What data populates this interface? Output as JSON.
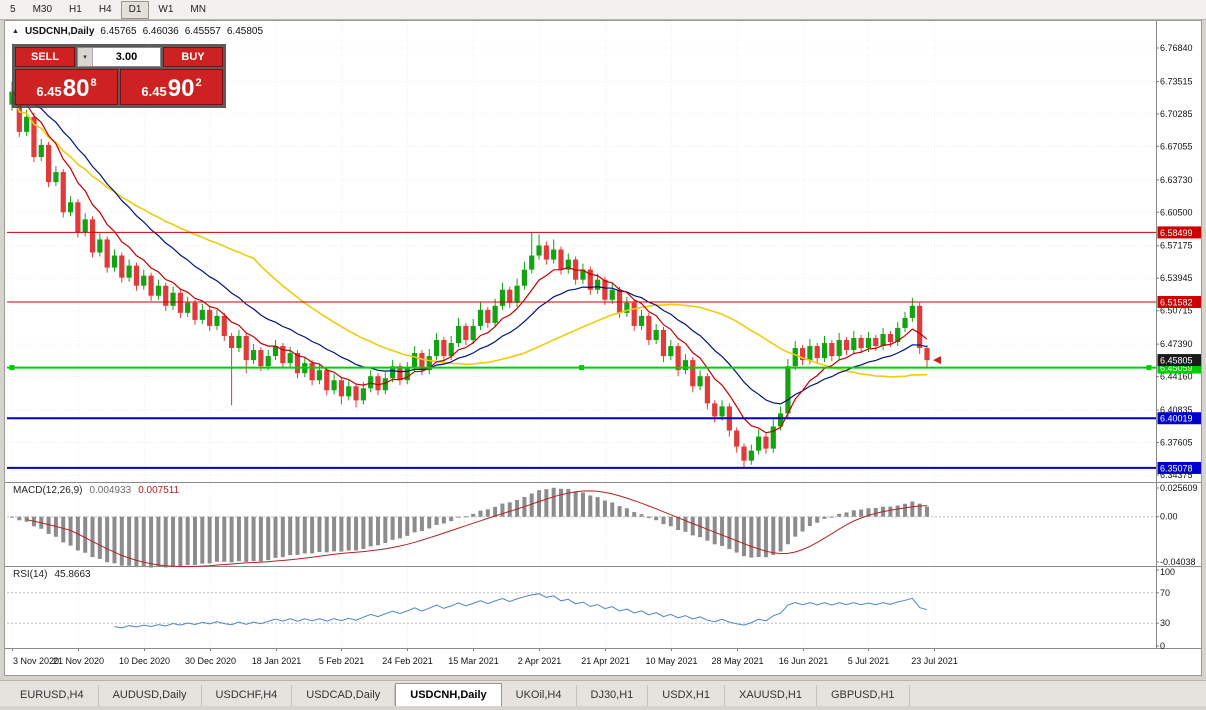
{
  "toolbar": {
    "timeframes": [
      "5",
      "M30",
      "H1",
      "H4",
      "D1",
      "W1",
      "MN"
    ],
    "active": "D1"
  },
  "chart": {
    "title": {
      "symbol": "USDCNH,Daily",
      "open": "6.45765",
      "high": "6.46036",
      "low": "6.45557",
      "close": "6.45805"
    },
    "trade_panel": {
      "sell_label": "SELL",
      "buy_label": "BUY",
      "lots": "3.00",
      "sell_price": {
        "big": "6.45",
        "pips": "80",
        "sup": "8"
      },
      "buy_price": {
        "big": "6.45",
        "pips": "90",
        "sup": "2"
      },
      "sell_color": "#CE2222",
      "buy_color": "#CE2222"
    },
    "axis_labels": [
      "6.76840",
      "6.73515",
      "6.70285",
      "6.67055",
      "6.63730",
      "6.60500",
      "6.57175",
      "6.53945",
      "6.50715",
      "6.47390",
      "6.44160",
      "6.40835",
      "6.37605",
      "6.34375"
    ],
    "levels": [
      {
        "price": 6.58499,
        "label": "6.58499",
        "color": "#CC0000",
        "width": 1,
        "handles": false
      },
      {
        "price": 6.51582,
        "label": "6.51582",
        "color": "#CC0000",
        "width": 1,
        "handles": false
      },
      {
        "price": 6.45059,
        "label": "6.45059",
        "color": "#00CE00",
        "width": 2,
        "handles": true
      },
      {
        "price": 6.40019,
        "label": "6.40019",
        "color": "#0000CC",
        "width": 2,
        "handles": false
      },
      {
        "price": 6.35078,
        "label": "6.35078",
        "color": "#0000CC",
        "width": 2,
        "handles": false
      }
    ],
    "bid": {
      "price": 6.45805,
      "label": "6.45805",
      "color": "#1A1A1A"
    },
    "marker": {
      "shape": "left-arrow",
      "color": "#CC2020",
      "price": 6.458
    },
    "dates": [
      "3 Nov 2020",
      "21 Nov 2020",
      "10 Dec 2020",
      "30 Dec 2020",
      "18 Jan 2021",
      "5 Feb 2021",
      "24 Feb 2021",
      "15 Mar 2021",
      "2 Apr 2021",
      "21 Apr 2021",
      "10 May 2021",
      "28 May 2021",
      "16 Jun 2021",
      "5 Jul 2021",
      "23 Jul 2021"
    ],
    "colors": {
      "up": "#12A212",
      "down": "#E03A3A",
      "macd_hist": "#8C8C8C",
      "macd_signal": "#B22222",
      "rsi": "#4E86C6",
      "grid": "#EFEFEF",
      "axis_text": "#111111"
    }
  },
  "indicators": {
    "macd": {
      "title": "MACD(12,26,9)",
      "value": "0.004933",
      "signal": "0.007511",
      "axis": [
        "0.025609",
        "0.00",
        "-0.04038"
      ],
      "fast": 12,
      "slow": 26,
      "smoothing": 9
    },
    "rsi": {
      "title": "RSI(14)",
      "value": "45.8663",
      "axis": [
        "100",
        "70",
        "30",
        "0"
      ],
      "period": 14,
      "levels": [
        70,
        30
      ]
    }
  },
  "tabs": {
    "items": [
      "EURUSD,H4",
      "AUDUSD,Daily",
      "USDCHF,H4",
      "USDCAD,Daily",
      "USDCNH,Daily",
      "UKOil,H4",
      "DJ30,H1",
      "USDX,H1",
      "XAUUSD,H1",
      "GBPUSD,H1"
    ],
    "active": "USDCNH,Daily"
  },
  "chart_data": {
    "type": "candlestick",
    "symbol": "USDCNH",
    "timeframe": "Daily",
    "x_range": [
      "3 Nov 2020",
      "29 Jul 2021"
    ],
    "y_range": [
      6.34375,
      6.7684
    ],
    "moving_averages": [
      {
        "type": "sma",
        "period": 34,
        "color": "#EFCB0C",
        "width": 1.6
      },
      {
        "type": "ema",
        "period": 18,
        "color": "#00127E",
        "width": 1.2
      },
      {
        "type": "ema",
        "period": 8,
        "color": "#C40000",
        "width": 1.2
      }
    ],
    "candles": [
      [
        6.712,
        6.735,
        6.706,
        6.725
      ],
      [
        6.725,
        6.729,
        6.68,
        6.685
      ],
      [
        6.685,
        6.707,
        6.681,
        6.7
      ],
      [
        6.7,
        6.704,
        6.655,
        6.66
      ],
      [
        6.66,
        6.678,
        6.656,
        6.672
      ],
      [
        6.672,
        6.675,
        6.63,
        6.635
      ],
      [
        6.635,
        6.651,
        6.631,
        6.645
      ],
      [
        6.645,
        6.648,
        6.6,
        6.605
      ],
      [
        6.605,
        6.621,
        6.601,
        6.615
      ],
      [
        6.615,
        6.618,
        6.58,
        6.585
      ],
      [
        6.585,
        6.604,
        6.581,
        6.598
      ],
      [
        6.598,
        6.601,
        6.56,
        6.565
      ],
      [
        6.565,
        6.584,
        6.561,
        6.578
      ],
      [
        6.578,
        6.581,
        6.545,
        6.55
      ],
      [
        6.55,
        6.568,
        6.546,
        6.562
      ],
      [
        6.562,
        6.565,
        6.535,
        6.54
      ],
      [
        6.54,
        6.558,
        6.536,
        6.552
      ],
      [
        6.552,
        6.555,
        6.527,
        6.532
      ],
      [
        6.532,
        6.548,
        6.528,
        6.542
      ],
      [
        6.542,
        6.545,
        6.517,
        6.522
      ],
      [
        6.522,
        6.538,
        6.518,
        6.532
      ],
      [
        6.532,
        6.535,
        6.507,
        6.512
      ],
      [
        6.512,
        6.531,
        6.508,
        6.525
      ],
      [
        6.525,
        6.528,
        6.5,
        6.505
      ],
      [
        6.505,
        6.521,
        6.501,
        6.515
      ],
      [
        6.515,
        6.518,
        6.493,
        6.498
      ],
      [
        6.498,
        6.514,
        6.494,
        6.508
      ],
      [
        6.508,
        6.511,
        6.487,
        6.492
      ],
      [
        6.492,
        6.508,
        6.488,
        6.502
      ],
      [
        6.502,
        6.505,
        6.477,
        6.482
      ],
      [
        6.482,
        6.485,
        6.413,
        6.47
      ],
      [
        6.47,
        6.488,
        6.466,
        6.482
      ],
      [
        6.482,
        6.485,
        6.445,
        6.458
      ],
      [
        6.458,
        6.474,
        6.454,
        6.468
      ],
      [
        6.468,
        6.471,
        6.447,
        6.452
      ],
      [
        6.452,
        6.468,
        6.448,
        6.462
      ],
      [
        6.462,
        6.478,
        6.458,
        6.472
      ],
      [
        6.472,
        6.475,
        6.45,
        6.455
      ],
      [
        6.455,
        6.471,
        6.451,
        6.465
      ],
      [
        6.465,
        6.468,
        6.44,
        6.445
      ],
      [
        6.445,
        6.461,
        6.441,
        6.455
      ],
      [
        6.455,
        6.458,
        6.433,
        6.438
      ],
      [
        6.438,
        6.454,
        6.434,
        6.448
      ],
      [
        6.448,
        6.451,
        6.423,
        6.428
      ],
      [
        6.428,
        6.444,
        6.424,
        6.438
      ],
      [
        6.438,
        6.441,
        6.414,
        6.422
      ],
      [
        6.422,
        6.438,
        6.418,
        6.432
      ],
      [
        6.432,
        6.435,
        6.411,
        6.418
      ],
      [
        6.418,
        6.436,
        6.414,
        6.43
      ],
      [
        6.43,
        6.448,
        6.426,
        6.442
      ],
      [
        6.442,
        6.445,
        6.423,
        6.428
      ],
      [
        6.428,
        6.446,
        6.424,
        6.44
      ],
      [
        6.44,
        6.458,
        6.436,
        6.452
      ],
      [
        6.452,
        6.455,
        6.433,
        6.438
      ],
      [
        6.438,
        6.456,
        6.434,
        6.45
      ],
      [
        6.45,
        6.472,
        6.446,
        6.465
      ],
      [
        6.465,
        6.468,
        6.443,
        6.448
      ],
      [
        6.448,
        6.469,
        6.444,
        6.462
      ],
      [
        6.462,
        6.485,
        6.458,
        6.478
      ],
      [
        6.478,
        6.481,
        6.457,
        6.462
      ],
      [
        6.462,
        6.482,
        6.458,
        6.475
      ],
      [
        6.475,
        6.5,
        6.471,
        6.492
      ],
      [
        6.492,
        6.495,
        6.473,
        6.478
      ],
      [
        6.478,
        6.499,
        6.474,
        6.492
      ],
      [
        6.492,
        6.516,
        6.488,
        6.508
      ],
      [
        6.508,
        6.511,
        6.49,
        6.495
      ],
      [
        6.495,
        6.519,
        6.491,
        6.512
      ],
      [
        6.512,
        6.535,
        6.508,
        6.528
      ],
      [
        6.528,
        6.531,
        6.51,
        6.515
      ],
      [
        6.515,
        6.539,
        6.511,
        6.532
      ],
      [
        6.532,
        6.556,
        6.528,
        6.548
      ],
      [
        6.548,
        6.585,
        6.544,
        6.562
      ],
      [
        6.562,
        6.583,
        6.558,
        6.572
      ],
      [
        6.572,
        6.576,
        6.553,
        6.558
      ],
      [
        6.558,
        6.578,
        6.554,
        6.568
      ],
      [
        6.568,
        6.571,
        6.543,
        6.548
      ],
      [
        6.548,
        6.564,
        6.544,
        6.558
      ],
      [
        6.558,
        6.561,
        6.533,
        6.538
      ],
      [
        6.538,
        6.554,
        6.534,
        6.548
      ],
      [
        6.548,
        6.551,
        6.523,
        6.528
      ],
      [
        6.528,
        6.544,
        6.524,
        6.538
      ],
      [
        6.538,
        6.541,
        6.513,
        6.518
      ],
      [
        6.518,
        6.534,
        6.514,
        6.528
      ],
      [
        6.528,
        6.531,
        6.5,
        6.505
      ],
      [
        6.505,
        6.521,
        6.501,
        6.515
      ],
      [
        6.515,
        6.518,
        6.487,
        6.492
      ],
      [
        6.492,
        6.508,
        6.488,
        6.502
      ],
      [
        6.502,
        6.505,
        6.473,
        6.478
      ],
      [
        6.478,
        6.494,
        6.474,
        6.488
      ],
      [
        6.488,
        6.491,
        6.456,
        6.462
      ],
      [
        6.462,
        6.478,
        6.458,
        6.472
      ],
      [
        6.472,
        6.475,
        6.442,
        6.448
      ],
      [
        6.448,
        6.464,
        6.444,
        6.458
      ],
      [
        6.458,
        6.461,
        6.426,
        6.432
      ],
      [
        6.432,
        6.448,
        6.428,
        6.442
      ],
      [
        6.442,
        6.445,
        6.409,
        6.415
      ],
      [
        6.415,
        6.418,
        6.396,
        6.402
      ],
      [
        6.402,
        6.418,
        6.398,
        6.412
      ],
      [
        6.412,
        6.415,
        6.382,
        6.388
      ],
      [
        6.388,
        6.391,
        6.366,
        6.372
      ],
      [
        6.372,
        6.375,
        6.351,
        6.358
      ],
      [
        6.358,
        6.374,
        6.354,
        6.368
      ],
      [
        6.368,
        6.389,
        6.364,
        6.382
      ],
      [
        6.382,
        6.385,
        6.365,
        6.37
      ],
      [
        6.37,
        6.399,
        6.366,
        6.392
      ],
      [
        6.392,
        6.412,
        6.388,
        6.405
      ],
      [
        6.405,
        6.459,
        6.401,
        6.452
      ],
      [
        6.452,
        6.477,
        6.448,
        6.47
      ],
      [
        6.47,
        6.473,
        6.453,
        6.458
      ],
      [
        6.458,
        6.479,
        6.454,
        6.472
      ],
      [
        6.472,
        6.475,
        6.455,
        6.46
      ],
      [
        6.46,
        6.482,
        6.456,
        6.475
      ],
      [
        6.475,
        6.478,
        6.457,
        6.462
      ],
      [
        6.462,
        6.485,
        6.458,
        6.478
      ],
      [
        6.478,
        6.481,
        6.463,
        6.468
      ],
      [
        6.468,
        6.487,
        6.464,
        6.48
      ],
      [
        6.48,
        6.483,
        6.465,
        6.47
      ],
      [
        6.47,
        6.486,
        6.466,
        6.48
      ],
      [
        6.48,
        6.483,
        6.467,
        6.472
      ],
      [
        6.472,
        6.49,
        6.468,
        6.484
      ],
      [
        6.484,
        6.487,
        6.471,
        6.476
      ],
      [
        6.476,
        6.496,
        6.472,
        6.49
      ],
      [
        6.49,
        6.506,
        6.486,
        6.5
      ],
      [
        6.5,
        6.52,
        6.496,
        6.512
      ],
      [
        6.512,
        6.515,
        6.464,
        6.47
      ],
      [
        6.47,
        6.473,
        6.45,
        6.458
      ]
    ]
  }
}
